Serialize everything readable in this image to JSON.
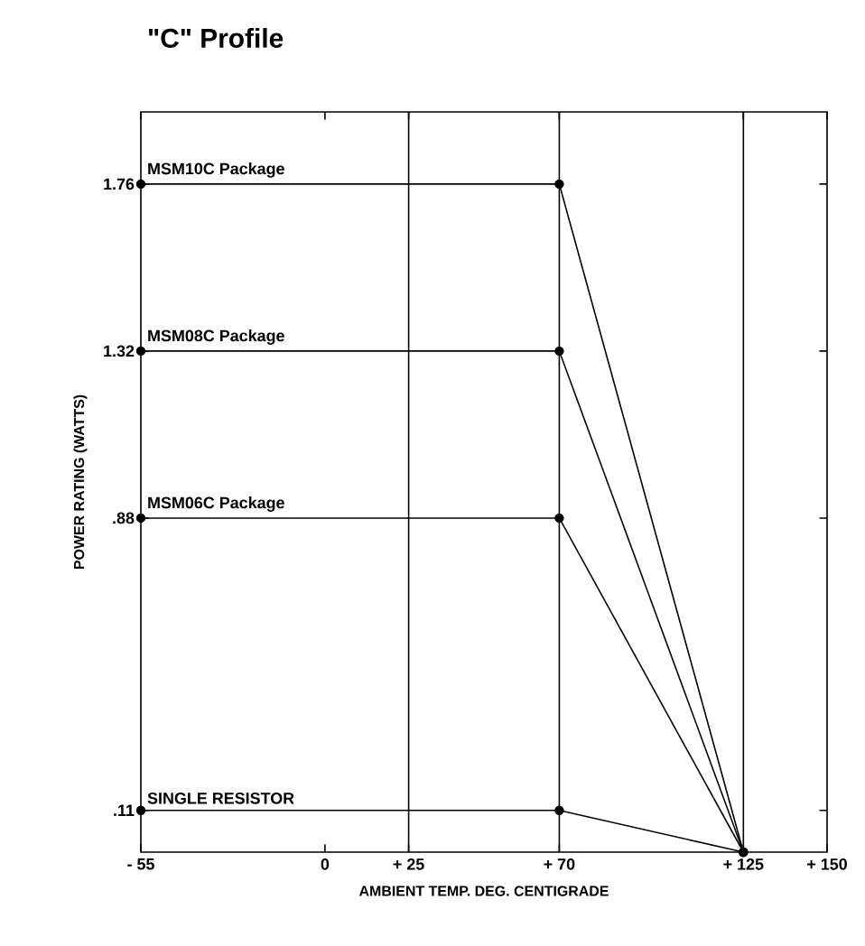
{
  "chart_data": {
    "type": "line",
    "title": "\"C\" Profile",
    "xlabel": "AMBIENT TEMP. DEG. CENTIGRADE",
    "ylabel": "POWER RATING (WATTS)",
    "xlim": [
      -55,
      150
    ],
    "ylim": [
      0,
      1.95
    ],
    "xticks": [
      {
        "value": -55,
        "label": "- 55"
      },
      0,
      {
        "value": 25,
        "label": "+ 25"
      },
      {
        "value": 70,
        "label": "+ 70"
      },
      {
        "value": 125,
        "label": "+ 125"
      },
      {
        "value": 150,
        "label": "+ 150"
      }
    ],
    "yticks": [
      {
        "value": 0.11,
        "label": ".11"
      },
      {
        "value": 0.88,
        "label": ".88"
      },
      1.32,
      1.76
    ],
    "x": [
      -55,
      70,
      125
    ],
    "series": [
      {
        "name": "MSM10C Package",
        "color": "#000000",
        "values": [
          1.76,
          1.76,
          0
        ]
      },
      {
        "name": "MSM08C Package",
        "color": "#000000",
        "values": [
          1.32,
          1.32,
          0
        ]
      },
      {
        "name": "MSM06C Package",
        "color": "#000000",
        "values": [
          0.88,
          0.88,
          0
        ]
      },
      {
        "name": "SINGLE RESISTOR",
        "color": "#000000",
        "values": [
          0.11,
          0.11,
          0
        ]
      }
    ],
    "ref_lines": [
      {
        "axis": "x",
        "value": 25
      },
      {
        "axis": "x",
        "value": 70
      },
      {
        "axis": "x",
        "value": 125
      }
    ],
    "marker": "circle",
    "line_style": "solid",
    "grid": false
  }
}
